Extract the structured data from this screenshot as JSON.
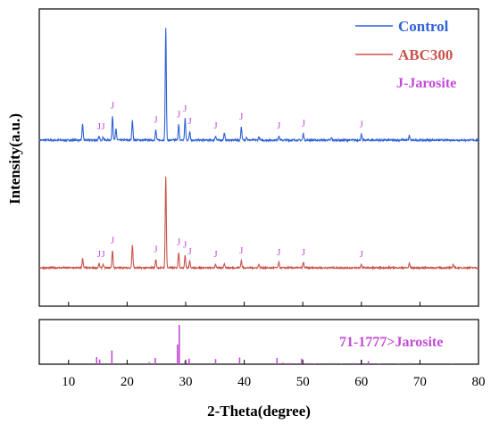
{
  "chart_data": [
    {
      "type": "line",
      "title": "",
      "xlabel": "2-Theta(degree)",
      "ylabel": "Intensity(a.u.)",
      "xlim": [
        5,
        80
      ],
      "xticks": [
        10,
        20,
        30,
        40,
        50,
        60,
        70,
        80
      ],
      "y_ticks_shown": false,
      "legend": {
        "placement": "top-right"
      },
      "peak_marker_label": "J",
      "legend_note": "J-Jarosite",
      "series": [
        {
          "name": "Control",
          "color": "#2f62d6",
          "baseline": 0.0,
          "peaks": [
            {
              "x": 12.4,
              "y": 14
            },
            {
              "x": 15.2,
              "y": 3
            },
            {
              "x": 15.9,
              "y": 3
            },
            {
              "x": 17.5,
              "y": 22
            },
            {
              "x": 18.1,
              "y": 10
            },
            {
              "x": 20.9,
              "y": 18
            },
            {
              "x": 24.9,
              "y": 9
            },
            {
              "x": 26.6,
              "y": 100
            },
            {
              "x": 28.8,
              "y": 14
            },
            {
              "x": 29.9,
              "y": 19
            },
            {
              "x": 30.7,
              "y": 8
            },
            {
              "x": 35.1,
              "y": 4
            },
            {
              "x": 36.6,
              "y": 6
            },
            {
              "x": 39.5,
              "y": 12
            },
            {
              "x": 40.4,
              "y": 3
            },
            {
              "x": 42.5,
              "y": 3
            },
            {
              "x": 45.9,
              "y": 4
            },
            {
              "x": 50.1,
              "y": 6
            },
            {
              "x": 54.9,
              "y": 2
            },
            {
              "x": 60.0,
              "y": 5
            },
            {
              "x": 68.2,
              "y": 4
            }
          ],
          "j_markers": [
            15.2,
            15.9,
            17.5,
            24.9,
            28.8,
            29.9,
            30.7,
            35.1,
            39.5,
            45.9,
            50.1,
            60.0
          ]
        },
        {
          "name": "ABC300",
          "color": "#c9544b",
          "baseline": 0.0,
          "peaks": [
            {
              "x": 12.4,
              "y": 10
            },
            {
              "x": 15.2,
              "y": 4
            },
            {
              "x": 15.9,
              "y": 4
            },
            {
              "x": 17.5,
              "y": 19
            },
            {
              "x": 20.9,
              "y": 25
            },
            {
              "x": 24.9,
              "y": 9
            },
            {
              "x": 26.6,
              "y": 100
            },
            {
              "x": 28.8,
              "y": 17
            },
            {
              "x": 29.9,
              "y": 14
            },
            {
              "x": 30.7,
              "y": 7
            },
            {
              "x": 35.1,
              "y": 4
            },
            {
              "x": 36.6,
              "y": 5
            },
            {
              "x": 39.5,
              "y": 8
            },
            {
              "x": 42.5,
              "y": 4
            },
            {
              "x": 45.9,
              "y": 6
            },
            {
              "x": 50.1,
              "y": 6
            },
            {
              "x": 60.0,
              "y": 4
            },
            {
              "x": 68.2,
              "y": 5
            },
            {
              "x": 75.7,
              "y": 4
            }
          ],
          "j_markers": [
            15.2,
            15.9,
            17.5,
            24.9,
            28.8,
            29.9,
            30.7,
            35.1,
            39.5,
            45.9,
            50.1,
            60.0
          ]
        }
      ]
    },
    {
      "type": "bar",
      "title": "71-1777>Jarosite",
      "xlim": [
        5,
        80
      ],
      "color": "#c24cd6",
      "x": [
        14.8,
        15.3,
        17.4,
        23.8,
        24.8,
        28.6,
        28.9,
        29.9,
        30.6,
        35.1,
        39.2,
        45.6,
        46.6,
        47.6,
        49.8,
        50.7,
        52.0,
        54.9,
        56.6,
        58.5,
        60.0,
        61.2,
        63.0,
        66.3,
        68.0,
        75.5
      ],
      "values": [
        18,
        12,
        35,
        5,
        16,
        50,
        100,
        8,
        14,
        13,
        17,
        16,
        4,
        3,
        14,
        3,
        2,
        3,
        2,
        3,
        11,
        8,
        2,
        2,
        3,
        2
      ]
    }
  ]
}
